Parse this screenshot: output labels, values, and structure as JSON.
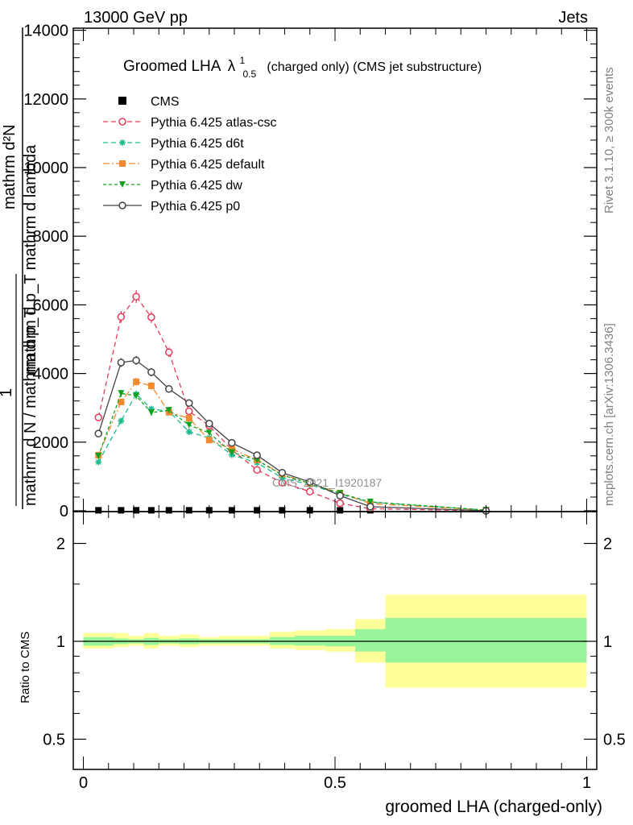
{
  "header": {
    "left": "13000 GeV pp",
    "right": "Jets"
  },
  "side_labels": {
    "rivet": "Rivet 3.1.10, ≥ 300k events",
    "mcplots": "mcplots.cern.ch [arXiv:1306.3436]"
  },
  "colors": {
    "cms": "#000000",
    "atlas_csc": "#e8385a",
    "d6t": "#1aba8c",
    "default": "#f28a30",
    "dw": "#12a020",
    "p0": "#444444",
    "band_outer": "#ffff99",
    "band_inner": "#99f599"
  },
  "chart_data": [
    {
      "type": "line",
      "title_main": "Groomed LHA",
      "title_lambda": "λ",
      "title_sup": "1",
      "title_sub": "0.5",
      "title_rest": "(charged only) (CMS jet substructure)",
      "ylabel_top": "mathrm d²N",
      "ylabel_bottom": "mathrm d p_T mathrm d lambda",
      "ylabel_left": "1",
      "ylabel_left_bottom": "mathrm d N / mathrm d p_T",
      "watermark": "CMS_2021_I1920187",
      "xlim": [
        -0.02,
        1.02
      ],
      "ylim": [
        0,
        14000
      ],
      "yticks": [
        0,
        2000,
        4000,
        6000,
        8000,
        10000,
        12000,
        14000
      ],
      "ytick_labels": [
        "0",
        "2000",
        "4000",
        "6000",
        "8000",
        "10000",
        "12000",
        "14000"
      ],
      "legend_position": "top-left",
      "x": [
        0.03,
        0.075,
        0.105,
        0.135,
        0.17,
        0.21,
        0.25,
        0.295,
        0.345,
        0.395,
        0.45,
        0.51,
        0.57,
        0.8
      ],
      "series": [
        {
          "name": "CMS",
          "key": "cms",
          "marker": "square",
          "values": [
            15,
            15,
            15,
            15,
            15,
            15,
            15,
            15,
            15,
            15,
            15,
            15,
            15,
            15
          ]
        },
        {
          "name": "Pythia 6.425 atlas-csc",
          "key": "atlas_csc",
          "marker": "open-circle",
          "dash": "6,4",
          "values": [
            2720,
            5650,
            6240,
            5640,
            4620,
            2900,
            2480,
            1780,
            1190,
            820,
            560,
            220,
            60,
            0
          ]
        },
        {
          "name": "Pythia 6.425 d6t",
          "key": "d6t",
          "marker": "star",
          "dash": "6,4",
          "values": [
            1420,
            2620,
            3400,
            2970,
            2900,
            2300,
            2120,
            1630,
            1400,
            960,
            760,
            480,
            250,
            20
          ]
        },
        {
          "name": "Pythia 6.425 default",
          "key": "default",
          "marker": "square",
          "dash": "8,3,2,3",
          "values": [
            1620,
            3170,
            3760,
            3640,
            2870,
            2700,
            2060,
            1800,
            1480,
            1070,
            790,
            520,
            210,
            20
          ]
        },
        {
          "name": "Pythia 6.425 dw",
          "key": "dw",
          "marker": "triangle-down",
          "dash": "4,3",
          "values": [
            1600,
            3420,
            3350,
            2860,
            2930,
            2500,
            2270,
            1700,
            1480,
            1040,
            800,
            510,
            260,
            20
          ]
        },
        {
          "name": "Pythia 6.425 p0",
          "key": "p0",
          "marker": "open-circle",
          "dash": "",
          "values": [
            2250,
            4320,
            4380,
            4040,
            3550,
            3140,
            2540,
            1980,
            1620,
            1110,
            840,
            440,
            120,
            0
          ]
        }
      ]
    },
    {
      "type": "area",
      "ylabel": "Ratio to CMS",
      "xlabel": "groomed LHA (charged-only)",
      "xlim": [
        -0.02,
        1.02
      ],
      "ylim": [
        0.4,
        2.3
      ],
      "log_y": true,
      "xticks": [
        0,
        0.5,
        1
      ],
      "xtick_labels": [
        "0",
        "0.5",
        "1"
      ],
      "yticks": [
        0.5,
        1,
        2
      ],
      "ytick_labels": [
        "0.5",
        "1",
        "2"
      ],
      "bins": [
        {
          "lo": 0.0,
          "hi": 0.06,
          "outer": [
            0.95,
            1.06
          ],
          "inner": [
            0.97,
            1.03
          ]
        },
        {
          "lo": 0.06,
          "hi": 0.09,
          "outer": [
            0.96,
            1.06
          ],
          "inner": [
            0.98,
            1.02
          ]
        },
        {
          "lo": 0.09,
          "hi": 0.12,
          "outer": [
            0.97,
            1.04
          ],
          "inner": [
            0.985,
            1.015
          ]
        },
        {
          "lo": 0.12,
          "hi": 0.15,
          "outer": [
            0.95,
            1.06
          ],
          "inner": [
            0.975,
            1.025
          ]
        },
        {
          "lo": 0.15,
          "hi": 0.19,
          "outer": [
            0.97,
            1.04
          ],
          "inner": [
            0.985,
            1.015
          ]
        },
        {
          "lo": 0.19,
          "hi": 0.23,
          "outer": [
            0.96,
            1.05
          ],
          "inner": [
            0.98,
            1.02
          ]
        },
        {
          "lo": 0.23,
          "hi": 0.27,
          "outer": [
            0.97,
            1.03
          ],
          "inner": [
            0.985,
            1.015
          ]
        },
        {
          "lo": 0.27,
          "hi": 0.32,
          "outer": [
            0.97,
            1.04
          ],
          "inner": [
            0.985,
            1.015
          ]
        },
        {
          "lo": 0.32,
          "hi": 0.37,
          "outer": [
            0.97,
            1.04
          ],
          "inner": [
            0.985,
            1.015
          ]
        },
        {
          "lo": 0.37,
          "hi": 0.42,
          "outer": [
            0.95,
            1.07
          ],
          "inner": [
            0.975,
            1.03
          ]
        },
        {
          "lo": 0.42,
          "hi": 0.48,
          "outer": [
            0.94,
            1.08
          ],
          "inner": [
            0.97,
            1.04
          ]
        },
        {
          "lo": 0.48,
          "hi": 0.54,
          "outer": [
            0.93,
            1.09
          ],
          "inner": [
            0.965,
            1.04
          ]
        },
        {
          "lo": 0.54,
          "hi": 0.6,
          "outer": [
            0.86,
            1.17
          ],
          "inner": [
            0.93,
            1.09
          ]
        },
        {
          "lo": 0.6,
          "hi": 1.0,
          "outer": [
            0.72,
            1.39
          ],
          "inner": [
            0.86,
            1.18
          ]
        }
      ],
      "reference": 1
    }
  ]
}
